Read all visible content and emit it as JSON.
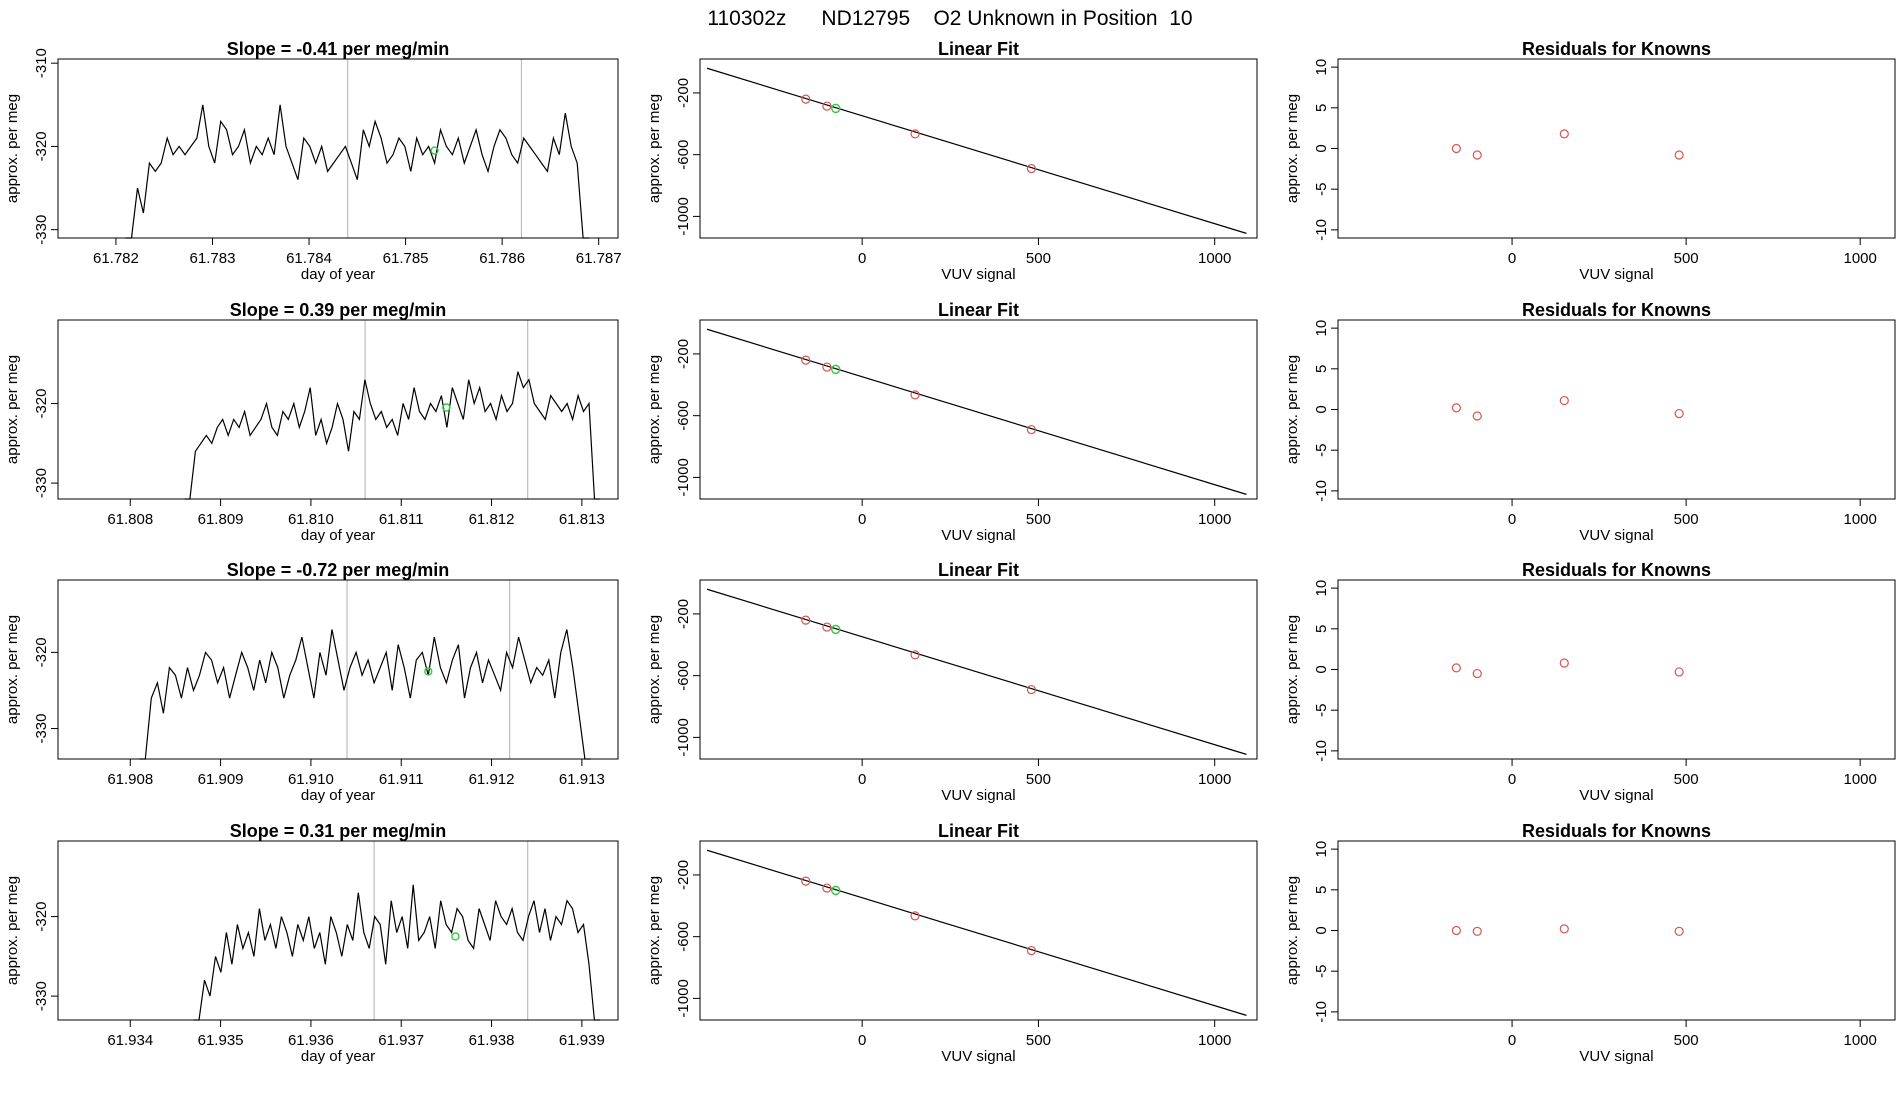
{
  "figure_title": "110302z      ND12795    O2 Unknown in Position  10",
  "colors": {
    "trace": "#000000",
    "vline": "#bebebe",
    "known_point": "#d9534f",
    "unknown_point": "#2ecc40",
    "fit_line": "#000000"
  },
  "chart_data": [
    {
      "type": "line",
      "row": 0,
      "col": 0,
      "title": "Slope =  -0.41  per meg/min",
      "xlabel": "day of year",
      "ylabel": "approx. per meg",
      "xlim": [
        61.7814,
        61.7872
      ],
      "ylim": [
        -331,
        -309.5
      ],
      "xticks": [
        61.782,
        61.783,
        61.784,
        61.785,
        61.786,
        61.787
      ],
      "xtick_labels": [
        "61.782",
        "61.783",
        "61.784",
        "61.785",
        "61.786",
        "61.787"
      ],
      "yticks": [
        -330,
        -320,
        -310
      ],
      "ytick_labels": [
        "-330",
        "-320",
        "-310"
      ],
      "vlines": [
        61.7844,
        61.7862
      ],
      "trace_x_range": [
        61.7821,
        61.7869
      ],
      "trace_y": [
        -331,
        -331,
        -325,
        -328,
        -322,
        -323,
        -322,
        -319,
        -321,
        -320,
        -321,
        -320,
        -319,
        -315,
        -320,
        -322,
        -317,
        -318,
        -321,
        -320,
        -318,
        -322,
        -320,
        -321,
        -319,
        -321,
        -315,
        -320,
        -322,
        -324,
        -319,
        -320,
        -322,
        -320,
        -323,
        -322,
        -321,
        -320,
        -322,
        -324,
        -318,
        -320,
        -317,
        -319,
        -322,
        -321,
        -319,
        -320,
        -323,
        -319,
        -321,
        -320,
        -322,
        -318,
        -320,
        -321,
        -319,
        -322,
        -320,
        -318,
        -321,
        -323,
        -320,
        -318,
        -319,
        -321,
        -322,
        -319,
        -320,
        -321,
        -322,
        -323,
        -319,
        -321,
        -316,
        -320,
        -322,
        -331,
        -331
      ],
      "marker": {
        "x": 61.7853,
        "y": -320.5
      }
    },
    {
      "type": "scatter",
      "row": 0,
      "col": 1,
      "title": "Linear Fit",
      "xlabel": "VUV signal",
      "ylabel": "approx. per meg",
      "xlim": [
        -460,
        1120
      ],
      "ylim": [
        -1140,
        20
      ],
      "xticks": [
        0,
        500,
        1000
      ],
      "xtick_labels": [
        "0",
        "500",
        "1000"
      ],
      "yticks": [
        -200,
        -600,
        -1000
      ],
      "ytick_labels": [
        "-200",
        "-600",
        "-1000"
      ],
      "fit_line": {
        "x": [
          -440,
          1090
        ],
        "y": [
          -40,
          -1110
        ]
      },
      "knowns": [
        {
          "x": -160,
          "y": -240
        },
        {
          "x": -100,
          "y": -285
        },
        {
          "x": 150,
          "y": -465
        },
        {
          "x": 480,
          "y": -690
        }
      ],
      "unknown": {
        "x": -75,
        "y": -300
      }
    },
    {
      "type": "scatter",
      "row": 0,
      "col": 2,
      "title": "Residuals for Knowns",
      "xlabel": "VUV signal",
      "ylabel": "approx. per meg",
      "xlim": [
        -500,
        1100
      ],
      "ylim": [
        -11,
        11
      ],
      "xticks": [
        0,
        500,
        1000
      ],
      "xtick_labels": [
        "0",
        "500",
        "1000"
      ],
      "yticks": [
        -10,
        -5,
        0,
        5,
        10
      ],
      "ytick_labels": [
        "-10",
        "-5",
        "0",
        "5",
        "10"
      ],
      "points": [
        {
          "x": -160,
          "y": 0
        },
        {
          "x": -100,
          "y": -0.8
        },
        {
          "x": 150,
          "y": 1.8
        },
        {
          "x": 480,
          "y": -0.8
        }
      ]
    },
    {
      "type": "line",
      "row": 1,
      "col": 0,
      "title": "Slope =  0.39  per meg/min",
      "xlabel": "day of year",
      "ylabel": "approx. per meg",
      "xlim": [
        61.8072,
        61.8134
      ],
      "ylim": [
        -332,
        -309.5
      ],
      "xticks": [
        61.808,
        61.809,
        61.81,
        61.811,
        61.812,
        61.813
      ],
      "xtick_labels": [
        "61.808",
        "61.809",
        "61.810",
        "61.811",
        "61.812",
        "61.813"
      ],
      "yticks": [
        -330,
        -320
      ],
      "ytick_labels": [
        "-330",
        "-320"
      ],
      "vlines": [
        61.8106,
        61.8124
      ],
      "trace_x_range": [
        61.8086,
        61.8132
      ],
      "trace_y": [
        -332,
        -332,
        -326,
        -325,
        -324,
        -325,
        -323,
        -322,
        -324,
        -322,
        -323,
        -321,
        -324,
        -323,
        -322,
        -320,
        -323,
        -324,
        -321,
        -322,
        -320,
        -323,
        -321,
        -318,
        -324,
        -322,
        -325,
        -323,
        -320,
        -322,
        -326,
        -321,
        -322,
        -317,
        -320,
        -322,
        -321,
        -323,
        -322,
        -324,
        -320,
        -322,
        -318,
        -321,
        -322,
        -320,
        -321,
        -319,
        -323,
        -318,
        -320,
        -322,
        -317,
        -320,
        -318,
        -321,
        -320,
        -322,
        -319,
        -321,
        -320,
        -316,
        -318,
        -317,
        -320,
        -321,
        -322,
        -319,
        -320,
        -321,
        -320,
        -322,
        -319,
        -321,
        -320,
        -332,
        -332
      ],
      "marker": {
        "x": 61.8115,
        "y": -320.5
      }
    },
    {
      "type": "scatter",
      "row": 1,
      "col": 1,
      "title": "Linear Fit",
      "xlabel": "VUV signal",
      "ylabel": "approx. per meg",
      "xlim": [
        -460,
        1120
      ],
      "ylim": [
        -1140,
        20
      ],
      "xticks": [
        0,
        500,
        1000
      ],
      "xtick_labels": [
        "0",
        "500",
        "1000"
      ],
      "yticks": [
        -200,
        -600,
        -1000
      ],
      "ytick_labels": [
        "-200",
        "-600",
        "-1000"
      ],
      "fit_line": {
        "x": [
          -440,
          1090
        ],
        "y": [
          -40,
          -1110
        ]
      },
      "knowns": [
        {
          "x": -160,
          "y": -240
        },
        {
          "x": -100,
          "y": -285
        },
        {
          "x": 150,
          "y": -465
        },
        {
          "x": 480,
          "y": -690
        }
      ],
      "unknown": {
        "x": -75,
        "y": -300
      }
    },
    {
      "type": "scatter",
      "row": 1,
      "col": 2,
      "title": "Residuals for Knowns",
      "xlabel": "VUV signal",
      "ylabel": "approx. per meg",
      "xlim": [
        -500,
        1100
      ],
      "ylim": [
        -11,
        11
      ],
      "xticks": [
        0,
        500,
        1000
      ],
      "xtick_labels": [
        "0",
        "500",
        "1000"
      ],
      "yticks": [
        -10,
        -5,
        0,
        5,
        10
      ],
      "ytick_labels": [
        "-10",
        "-5",
        "0",
        "5",
        "10"
      ],
      "points": [
        {
          "x": -160,
          "y": 0.2
        },
        {
          "x": -100,
          "y": -0.8
        },
        {
          "x": 150,
          "y": 1.1
        },
        {
          "x": 480,
          "y": -0.5
        }
      ]
    },
    {
      "type": "line",
      "row": 2,
      "col": 0,
      "title": "Slope =  -0.72  per meg/min",
      "xlabel": "day of year",
      "ylabel": "approx. per meg",
      "xlim": [
        61.9072,
        61.9134
      ],
      "ylim": [
        -334,
        -310.5
      ],
      "xticks": [
        61.908,
        61.909,
        61.91,
        61.911,
        61.912,
        61.913
      ],
      "xtick_labels": [
        "61.908",
        "61.909",
        "61.910",
        "61.911",
        "61.912",
        "61.913"
      ],
      "yticks": [
        -330,
        -320
      ],
      "ytick_labels": [
        "-330",
        "-320"
      ],
      "vlines": [
        61.9104,
        61.9122
      ],
      "trace_x_range": [
        61.9081,
        61.9131
      ],
      "trace_y": [
        -334,
        -334,
        -326,
        -324,
        -328,
        -322,
        -323,
        -326,
        -322,
        -325,
        -323,
        -320,
        -321,
        -324,
        -322,
        -326,
        -323,
        -320,
        -322,
        -325,
        -321,
        -324,
        -320,
        -322,
        -326,
        -323,
        -321,
        -318,
        -322,
        -326,
        -320,
        -323,
        -317,
        -321,
        -325,
        -322,
        -320,
        -323,
        -321,
        -324,
        -322,
        -320,
        -325,
        -319,
        -322,
        -326,
        -321,
        -320,
        -323,
        -318,
        -322,
        -324,
        -321,
        -319,
        -326,
        -322,
        -320,
        -324,
        -321,
        -323,
        -325,
        -320,
        -322,
        -318,
        -321,
        -324,
        -322,
        -323,
        -321,
        -326,
        -320,
        -317,
        -322,
        -328,
        -334,
        -334
      ],
      "marker": {
        "x": 61.9113,
        "y": -322.5
      }
    },
    {
      "type": "scatter",
      "row": 2,
      "col": 1,
      "title": "Linear Fit",
      "xlabel": "VUV signal",
      "ylabel": "approx. per meg",
      "xlim": [
        -460,
        1120
      ],
      "ylim": [
        -1140,
        20
      ],
      "xticks": [
        0,
        500,
        1000
      ],
      "xtick_labels": [
        "0",
        "500",
        "1000"
      ],
      "yticks": [
        -200,
        -600,
        -1000
      ],
      "ytick_labels": [
        "-200",
        "-600",
        "-1000"
      ],
      "fit_line": {
        "x": [
          -440,
          1090
        ],
        "y": [
          -40,
          -1110
        ]
      },
      "knowns": [
        {
          "x": -160,
          "y": -240
        },
        {
          "x": -100,
          "y": -285
        },
        {
          "x": 150,
          "y": -465
        },
        {
          "x": 480,
          "y": -690
        }
      ],
      "unknown": {
        "x": -75,
        "y": -300
      }
    },
    {
      "type": "scatter",
      "row": 2,
      "col": 2,
      "title": "Residuals for Knowns",
      "xlabel": "VUV signal",
      "ylabel": "approx. per meg",
      "xlim": [
        -500,
        1100
      ],
      "ylim": [
        -11,
        11
      ],
      "xticks": [
        0,
        500,
        1000
      ],
      "xtick_labels": [
        "0",
        "500",
        "1000"
      ],
      "yticks": [
        -10,
        -5,
        0,
        5,
        10
      ],
      "ytick_labels": [
        "-10",
        "-5",
        "0",
        "5",
        "10"
      ],
      "points": [
        {
          "x": -160,
          "y": 0.2
        },
        {
          "x": -100,
          "y": -0.5
        },
        {
          "x": 150,
          "y": 0.8
        },
        {
          "x": 480,
          "y": -0.3
        }
      ]
    },
    {
      "type": "line",
      "row": 3,
      "col": 0,
      "title": "Slope =  0.31  per meg/min",
      "xlabel": "day of year",
      "ylabel": "approx. per meg",
      "xlim": [
        61.9332,
        61.9394
      ],
      "ylim": [
        -333,
        -310.5
      ],
      "xticks": [
        61.934,
        61.935,
        61.936,
        61.937,
        61.938,
        61.939
      ],
      "xtick_labels": [
        "61.934",
        "61.935",
        "61.936",
        "61.937",
        "61.938",
        "61.939"
      ],
      "yticks": [
        -330,
        -320
      ],
      "ytick_labels": [
        "-330",
        "-320"
      ],
      "vlines": [
        61.9367,
        61.9384
      ],
      "trace_x_range": [
        61.9347,
        61.9392
      ],
      "trace_y": [
        -333,
        -333,
        -328,
        -330,
        -325,
        -327,
        -322,
        -326,
        -321,
        -324,
        -322,
        -325,
        -319,
        -323,
        -321,
        -324,
        -320,
        -322,
        -325,
        -321,
        -323,
        -320,
        -324,
        -322,
        -326,
        -320,
        -322,
        -325,
        -321,
        -323,
        -317,
        -322,
        -324,
        -320,
        -321,
        -326,
        -318,
        -322,
        -320,
        -324,
        -316,
        -323,
        -322,
        -320,
        -324,
        -318,
        -321,
        -322,
        -319,
        -320,
        -323,
        -324,
        -319,
        -321,
        -323,
        -318,
        -320,
        -321,
        -319,
        -322,
        -323,
        -320,
        -318,
        -322,
        -319,
        -323,
        -320,
        -321,
        -318,
        -319,
        -322,
        -321,
        -326,
        -333,
        -333
      ],
      "marker": {
        "x": 61.9376,
        "y": -322.5
      }
    },
    {
      "type": "scatter",
      "row": 3,
      "col": 1,
      "title": "Linear Fit",
      "xlabel": "VUV signal",
      "ylabel": "approx. per meg",
      "xlim": [
        -460,
        1120
      ],
      "ylim": [
        -1140,
        20
      ],
      "xticks": [
        0,
        500,
        1000
      ],
      "xtick_labels": [
        "0",
        "500",
        "1000"
      ],
      "yticks": [
        -200,
        -600,
        -1000
      ],
      "ytick_labels": [
        "-200",
        "-600",
        "-1000"
      ],
      "fit_line": {
        "x": [
          -440,
          1090
        ],
        "y": [
          -40,
          -1110
        ]
      },
      "knowns": [
        {
          "x": -160,
          "y": -240
        },
        {
          "x": -100,
          "y": -285
        },
        {
          "x": 150,
          "y": -465
        },
        {
          "x": 480,
          "y": -690
        }
      ],
      "unknown": {
        "x": -75,
        "y": -300
      }
    },
    {
      "type": "scatter",
      "row": 3,
      "col": 2,
      "title": "Residuals for Knowns",
      "xlabel": "VUV signal",
      "ylabel": "approx. per meg",
      "xlim": [
        -500,
        1100
      ],
      "ylim": [
        -11,
        11
      ],
      "xticks": [
        0,
        500,
        1000
      ],
      "xtick_labels": [
        "0",
        "500",
        "1000"
      ],
      "yticks": [
        -10,
        -5,
        0,
        5,
        10
      ],
      "ytick_labels": [
        "-10",
        "-5",
        "0",
        "5",
        "10"
      ],
      "points": [
        {
          "x": -160,
          "y": 0
        },
        {
          "x": -100,
          "y": -0.1
        },
        {
          "x": 150,
          "y": 0.2
        },
        {
          "x": 480,
          "y": -0.1
        }
      ]
    }
  ]
}
